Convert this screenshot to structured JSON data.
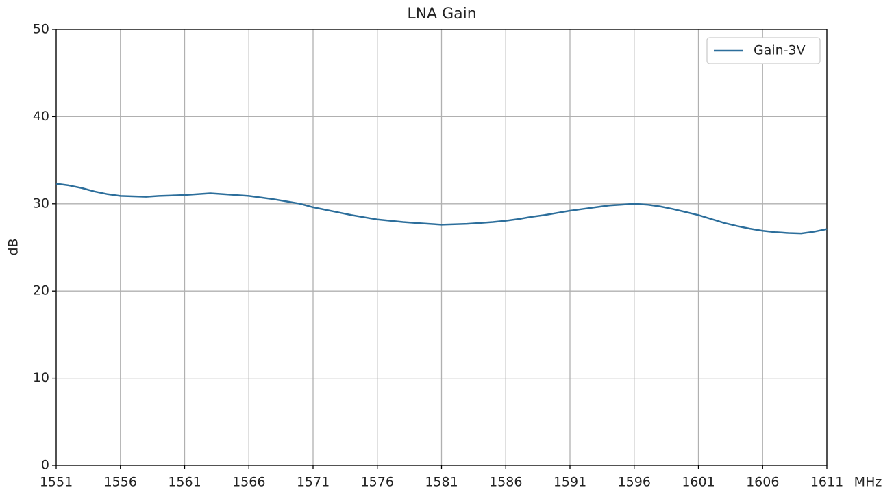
{
  "chart_data": {
    "type": "line",
    "title": "LNA Gain",
    "xlabel": "MHz",
    "ylabel": "dB",
    "x": [
      1551,
      1552,
      1553,
      1554,
      1555,
      1556,
      1557,
      1558,
      1559,
      1560,
      1561,
      1562,
      1563,
      1564,
      1565,
      1566,
      1567,
      1568,
      1569,
      1570,
      1571,
      1572,
      1573,
      1574,
      1575,
      1576,
      1577,
      1578,
      1579,
      1580,
      1581,
      1582,
      1583,
      1584,
      1585,
      1586,
      1587,
      1588,
      1589,
      1590,
      1591,
      1592,
      1593,
      1594,
      1595,
      1596,
      1597,
      1598,
      1599,
      1600,
      1601,
      1602,
      1603,
      1604,
      1605,
      1606,
      1607,
      1608,
      1609,
      1610,
      1611
    ],
    "series": [
      {
        "name": "Gain-3V",
        "color": "#2c6e9b",
        "values": [
          32.3,
          32.1,
          31.8,
          31.4,
          31.1,
          30.9,
          30.85,
          30.8,
          30.9,
          30.95,
          31.0,
          31.1,
          31.2,
          31.1,
          31.0,
          30.9,
          30.7,
          30.5,
          30.25,
          30.0,
          29.6,
          29.3,
          29.0,
          28.7,
          28.45,
          28.2,
          28.05,
          27.9,
          27.8,
          27.7,
          27.6,
          27.65,
          27.7,
          27.8,
          27.9,
          28.05,
          28.25,
          28.5,
          28.7,
          28.95,
          29.2,
          29.4,
          29.6,
          29.8,
          29.9,
          30.0,
          29.9,
          29.7,
          29.4,
          29.05,
          28.7,
          28.25,
          27.8,
          27.45,
          27.15,
          26.9,
          26.75,
          26.65,
          26.6,
          26.8,
          27.1
        ]
      }
    ],
    "xlim": [
      1551,
      1611
    ],
    "xticks": [
      1551,
      1556,
      1561,
      1566,
      1571,
      1576,
      1581,
      1586,
      1591,
      1596,
      1601,
      1606,
      1611
    ],
    "ylim": [
      0,
      50
    ],
    "yticks": [
      0,
      10,
      20,
      30,
      40,
      50
    ],
    "grid": true,
    "legend": "upper right"
  }
}
